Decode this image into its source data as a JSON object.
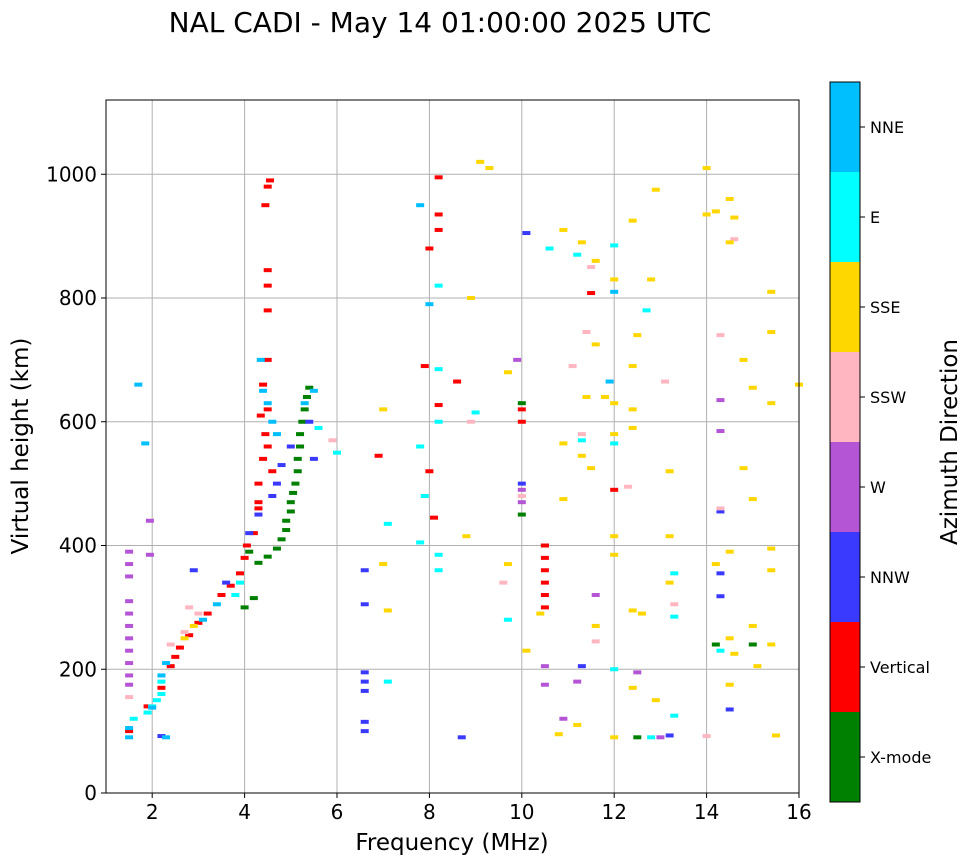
{
  "chart_data": {
    "type": "scatter",
    "title": "NAL CADI - May 14 01:00:00 2025 UTC",
    "xlabel": "Frequency (MHz)",
    "ylabel": "Virtual height (km)",
    "xlim": [
      1,
      16
    ],
    "ylim": [
      0,
      1120
    ],
    "x_ticks": [
      2,
      4,
      6,
      8,
      10,
      12,
      14,
      16
    ],
    "x_tick_labels": [
      "2",
      "4",
      "6",
      "8",
      "10",
      "12",
      "14",
      "16"
    ],
    "y_ticks": [
      0,
      200,
      400,
      600,
      800,
      1000
    ],
    "y_tick_labels": [
      "0",
      "200",
      "400",
      "600",
      "800",
      "1000"
    ],
    "grid": true,
    "colorbar": {
      "label": "Azimuth Direction",
      "categories": [
        {
          "name": "X-mode",
          "color": "#008000"
        },
        {
          "name": "Vertical",
          "color": "#ff0000"
        },
        {
          "name": "NNW",
          "color": "#3a3aff"
        },
        {
          "name": "W",
          "color": "#b455d6"
        },
        {
          "name": "SSW",
          "color": "#ffb6c1"
        },
        {
          "name": "SSE",
          "color": "#ffd700"
        },
        {
          "name": "E",
          "color": "#00ffff"
        },
        {
          "name": "NNE",
          "color": "#00bfff"
        }
      ]
    },
    "series": [
      {
        "name": "X-mode",
        "points": [
          [
            4.1,
            390
          ],
          [
            4.3,
            372
          ],
          [
            4.5,
            382
          ],
          [
            4.7,
            395
          ],
          [
            4.8,
            410
          ],
          [
            4.9,
            425
          ],
          [
            4.9,
            440
          ],
          [
            5.0,
            455
          ],
          [
            5.0,
            470
          ],
          [
            5.05,
            485
          ],
          [
            5.1,
            500
          ],
          [
            5.15,
            520
          ],
          [
            5.15,
            540
          ],
          [
            5.2,
            560
          ],
          [
            5.2,
            580
          ],
          [
            5.25,
            600
          ],
          [
            5.3,
            620
          ],
          [
            5.35,
            640
          ],
          [
            5.4,
            655
          ],
          [
            4.2,
            315
          ],
          [
            4.0,
            300
          ],
          [
            12.5,
            90
          ],
          [
            15.0,
            240
          ],
          [
            10.0,
            630
          ],
          [
            10.0,
            450
          ],
          [
            10.5,
            400
          ],
          [
            14.2,
            240
          ]
        ]
      },
      {
        "name": "Vertical",
        "points": [
          [
            1.5,
            100
          ],
          [
            1.9,
            140
          ],
          [
            2.2,
            170
          ],
          [
            2.4,
            205
          ],
          [
            2.5,
            220
          ],
          [
            2.6,
            235
          ],
          [
            2.8,
            255
          ],
          [
            3.0,
            275
          ],
          [
            3.2,
            290
          ],
          [
            3.5,
            320
          ],
          [
            3.7,
            335
          ],
          [
            3.9,
            355
          ],
          [
            4.0,
            380
          ],
          [
            4.05,
            400
          ],
          [
            4.2,
            420
          ],
          [
            4.3,
            460
          ],
          [
            4.3,
            500
          ],
          [
            4.4,
            540
          ],
          [
            4.45,
            580
          ],
          [
            4.5,
            620
          ],
          [
            4.4,
            660
          ],
          [
            4.5,
            700
          ],
          [
            4.5,
            780
          ],
          [
            4.5,
            820
          ],
          [
            4.5,
            845
          ],
          [
            4.5,
            980
          ],
          [
            4.55,
            990
          ],
          [
            4.45,
            950
          ],
          [
            4.3,
            470
          ],
          [
            4.6,
            520
          ],
          [
            4.5,
            560
          ],
          [
            4.35,
            610
          ],
          [
            6.9,
            545
          ],
          [
            8.2,
            995
          ],
          [
            8.2,
            935
          ],
          [
            8.2,
            910
          ],
          [
            8.0,
            880
          ],
          [
            7.9,
            690
          ],
          [
            8.0,
            520
          ],
          [
            8.1,
            445
          ],
          [
            8.2,
            627
          ],
          [
            8.6,
            665
          ],
          [
            10.0,
            620
          ],
          [
            10.0,
            600
          ],
          [
            10.5,
            400
          ],
          [
            10.5,
            380
          ],
          [
            10.5,
            360
          ],
          [
            10.5,
            340
          ],
          [
            10.5,
            320
          ],
          [
            10.5,
            300
          ],
          [
            12.0,
            490
          ],
          [
            11.5,
            808
          ]
        ]
      },
      {
        "name": "NNW",
        "points": [
          [
            2.2,
            92
          ],
          [
            2.9,
            360
          ],
          [
            3.6,
            340
          ],
          [
            4.1,
            420
          ],
          [
            4.3,
            450
          ],
          [
            4.6,
            480
          ],
          [
            4.7,
            500
          ],
          [
            4.8,
            530
          ],
          [
            5.0,
            560
          ],
          [
            5.5,
            540
          ],
          [
            5.4,
            600
          ],
          [
            6.6,
            360
          ],
          [
            6.6,
            305
          ],
          [
            6.6,
            195
          ],
          [
            6.6,
            180
          ],
          [
            6.6,
            165
          ],
          [
            6.6,
            115
          ],
          [
            6.6,
            100
          ],
          [
            8.7,
            90
          ],
          [
            10.1,
            905
          ],
          [
            10.0,
            500
          ],
          [
            11.3,
            205
          ],
          [
            13.2,
            93
          ],
          [
            14.3,
            455
          ],
          [
            14.3,
            355
          ],
          [
            14.3,
            318
          ],
          [
            14.5,
            135
          ]
        ]
      },
      {
        "name": "W",
        "points": [
          [
            1.5,
            390
          ],
          [
            1.5,
            370
          ],
          [
            1.5,
            350
          ],
          [
            1.5,
            310
          ],
          [
            1.5,
            290
          ],
          [
            1.5,
            270
          ],
          [
            1.5,
            250
          ],
          [
            1.5,
            230
          ],
          [
            1.5,
            210
          ],
          [
            1.5,
            190
          ],
          [
            1.5,
            175
          ],
          [
            1.95,
            440
          ],
          [
            1.95,
            385
          ],
          [
            10.0,
            490
          ],
          [
            10.0,
            470
          ],
          [
            10.5,
            175
          ],
          [
            10.5,
            205
          ],
          [
            10.9,
            120
          ],
          [
            11.2,
            180
          ],
          [
            12.5,
            195
          ],
          [
            14.3,
            585
          ],
          [
            14.3,
            635
          ],
          [
            13.0,
            90
          ],
          [
            11.6,
            320
          ],
          [
            9.9,
            700
          ]
        ]
      },
      {
        "name": "SSW",
        "points": [
          [
            1.5,
            155
          ],
          [
            2.4,
            240
          ],
          [
            2.7,
            260
          ],
          [
            2.8,
            300
          ],
          [
            3.0,
            290
          ],
          [
            5.9,
            570
          ],
          [
            8.9,
            600
          ],
          [
            9.6,
            340
          ],
          [
            10.0,
            480
          ],
          [
            11.1,
            690
          ],
          [
            11.4,
            745
          ],
          [
            11.3,
            580
          ],
          [
            11.6,
            245
          ],
          [
            12.3,
            495
          ],
          [
            13.1,
            665
          ],
          [
            13.3,
            305
          ],
          [
            14.3,
            740
          ],
          [
            14.6,
            895
          ],
          [
            14.0,
            92
          ],
          [
            14.3,
            460
          ],
          [
            11.5,
            850
          ]
        ]
      },
      {
        "name": "SSE",
        "points": [
          [
            2.7,
            250
          ],
          [
            2.9,
            270
          ],
          [
            7.0,
            620
          ],
          [
            7.0,
            370
          ],
          [
            7.1,
            295
          ],
          [
            8.8,
            415
          ],
          [
            8.9,
            800
          ],
          [
            9.1,
            1020
          ],
          [
            9.3,
            1010
          ],
          [
            9.7,
            680
          ],
          [
            9.7,
            370
          ],
          [
            10.1,
            230
          ],
          [
            10.4,
            290
          ],
          [
            10.8,
            95
          ],
          [
            10.9,
            565
          ],
          [
            10.9,
            475
          ],
          [
            10.9,
            910
          ],
          [
            11.3,
            890
          ],
          [
            11.4,
            640
          ],
          [
            11.2,
            110
          ],
          [
            11.3,
            545
          ],
          [
            11.5,
            525
          ],
          [
            11.6,
            270
          ],
          [
            11.6,
            725
          ],
          [
            11.6,
            860
          ],
          [
            11.8,
            640
          ],
          [
            12.0,
            630
          ],
          [
            12.0,
            830
          ],
          [
            12.0,
            580
          ],
          [
            12.0,
            415
          ],
          [
            12.0,
            385
          ],
          [
            12.0,
            90
          ],
          [
            12.4,
            925
          ],
          [
            12.4,
            690
          ],
          [
            12.4,
            620
          ],
          [
            12.4,
            590
          ],
          [
            12.4,
            295
          ],
          [
            12.4,
            170
          ],
          [
            12.5,
            740
          ],
          [
            12.6,
            290
          ],
          [
            12.8,
            830
          ],
          [
            12.9,
            975
          ],
          [
            12.9,
            150
          ],
          [
            13.2,
            415
          ],
          [
            13.2,
            520
          ],
          [
            13.2,
            340
          ],
          [
            14.0,
            1010
          ],
          [
            14.0,
            935
          ],
          [
            14.2,
            940
          ],
          [
            14.2,
            370
          ],
          [
            14.5,
            960
          ],
          [
            14.5,
            890
          ],
          [
            14.6,
            930
          ],
          [
            14.5,
            390
          ],
          [
            14.5,
            250
          ],
          [
            14.5,
            175
          ],
          [
            14.6,
            225
          ],
          [
            14.8,
            700
          ],
          [
            14.8,
            525
          ],
          [
            15.0,
            655
          ],
          [
            15.0,
            475
          ],
          [
            15.0,
            270
          ],
          [
            15.1,
            205
          ],
          [
            15.4,
            810
          ],
          [
            15.4,
            745
          ],
          [
            15.4,
            630
          ],
          [
            15.4,
            395
          ],
          [
            15.4,
            360
          ],
          [
            15.4,
            240
          ],
          [
            15.5,
            93
          ],
          [
            16.0,
            660
          ]
        ]
      },
      {
        "name": "E",
        "points": [
          [
            1.6,
            120
          ],
          [
            1.9,
            130
          ],
          [
            2.0,
            140
          ],
          [
            2.1,
            150
          ],
          [
            2.2,
            160
          ],
          [
            2.2,
            180
          ],
          [
            3.8,
            320
          ],
          [
            3.9,
            340
          ],
          [
            5.6,
            590
          ],
          [
            6.0,
            550
          ],
          [
            7.1,
            180
          ],
          [
            7.1,
            435
          ],
          [
            7.8,
            560
          ],
          [
            7.8,
            405
          ],
          [
            7.9,
            480
          ],
          [
            8.2,
            820
          ],
          [
            8.2,
            685
          ],
          [
            8.2,
            600
          ],
          [
            8.2,
            385
          ],
          [
            8.2,
            360
          ],
          [
            9.0,
            615
          ],
          [
            9.7,
            280
          ],
          [
            10.6,
            880
          ],
          [
            11.3,
            570
          ],
          [
            11.2,
            870
          ],
          [
            12.0,
            885
          ],
          [
            12.0,
            565
          ],
          [
            12.0,
            200
          ],
          [
            12.7,
            780
          ],
          [
            12.8,
            90
          ],
          [
            13.3,
            125
          ],
          [
            13.3,
            285
          ],
          [
            13.3,
            355
          ],
          [
            14.3,
            230
          ]
        ]
      },
      {
        "name": "NNE",
        "points": [
          [
            1.5,
            90
          ],
          [
            1.5,
            105
          ],
          [
            1.7,
            660
          ],
          [
            1.85,
            565
          ],
          [
            2.0,
            138
          ],
          [
            2.2,
            190
          ],
          [
            2.3,
            210
          ],
          [
            2.3,
            90
          ],
          [
            3.1,
            280
          ],
          [
            3.4,
            305
          ],
          [
            4.35,
            700
          ],
          [
            4.4,
            650
          ],
          [
            4.5,
            630
          ],
          [
            4.6,
            600
          ],
          [
            4.7,
            580
          ],
          [
            5.3,
            630
          ],
          [
            5.5,
            650
          ],
          [
            7.8,
            950
          ],
          [
            8.0,
            790
          ],
          [
            11.9,
            665
          ],
          [
            12.0,
            810
          ]
        ]
      }
    ]
  }
}
